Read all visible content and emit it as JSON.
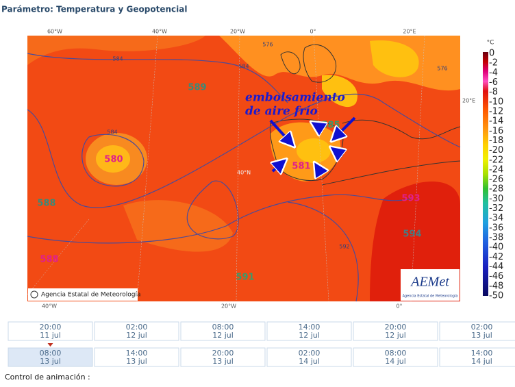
{
  "header": {
    "title": "Parámetro: Temperatura y Geopotencial"
  },
  "map": {
    "top_labels": [
      "60°W",
      "40°W",
      "20°W",
      "0°",
      "20°E"
    ],
    "bottom_labels": [
      "40°W",
      "20°W",
      "0°"
    ],
    "side_labels": [
      "20°E",
      "40°N"
    ],
    "contour_labels": [
      "589",
      "580",
      "588",
      "581",
      "585",
      "593",
      "594",
      "591",
      "588"
    ],
    "small_contour_labels": [
      "584",
      "584",
      "584",
      "576",
      "576",
      "592"
    ],
    "annotation": [
      "embolsamiento",
      "de aire frío"
    ],
    "copyright": "Agencia Estatal de Meteorología",
    "logo": "AEMet",
    "logo_caption": "Agencia Estatal de Meteorología"
  },
  "colorbar": {
    "unit": "°C",
    "ticks": [
      "0",
      "-2",
      "-4",
      "-6",
      "-8",
      "-10",
      "-12",
      "-14",
      "-16",
      "-18",
      "-20",
      "-22",
      "-24",
      "-26",
      "-28",
      "-30",
      "-32",
      "-34",
      "-36",
      "-38",
      "-40",
      "-42",
      "-44",
      "-46",
      "-48",
      "-50"
    ]
  },
  "timeline": [
    {
      "time": "20:00",
      "date": "11 jul"
    },
    {
      "time": "02:00",
      "date": "12 jul"
    },
    {
      "time": "08:00",
      "date": "12 jul"
    },
    {
      "time": "14:00",
      "date": "12 jul"
    },
    {
      "time": "20:00",
      "date": "12 jul"
    },
    {
      "time": "02:00",
      "date": "13 jul"
    },
    {
      "time": "08:00",
      "date": "13 jul"
    },
    {
      "time": "14:00",
      "date": "13 jul"
    },
    {
      "time": "20:00",
      "date": "13 jul"
    },
    {
      "time": "02:00",
      "date": "14 jul"
    },
    {
      "time": "08:00",
      "date": "14 jul"
    },
    {
      "time": "14:00",
      "date": "14 jul"
    }
  ],
  "footer": "Control de animación :"
}
